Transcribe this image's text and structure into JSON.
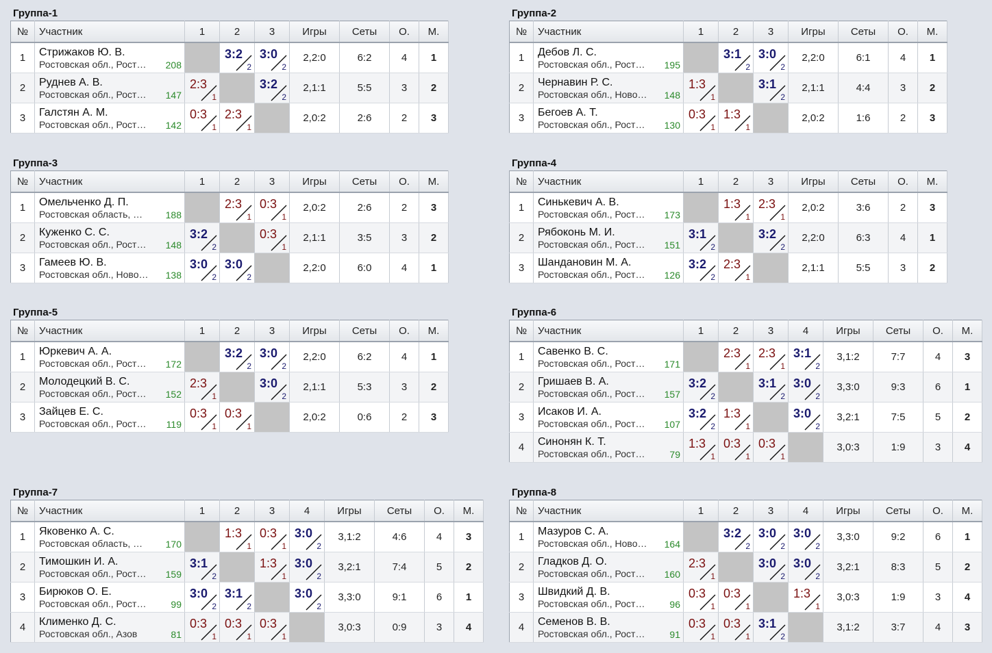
{
  "headers": {
    "num": "№",
    "participant": "Участник",
    "games": "Игры",
    "sets": "Сеты",
    "points": "О.",
    "place": "М."
  },
  "groups": [
    {
      "title": "Группа-1",
      "size": 3,
      "rows": [
        {
          "n": "1",
          "name": "Стрижаков Ю. В.",
          "region": "Ростовская обл., Рост…",
          "rating": "208",
          "res": [
            null,
            {
              "s": "3:2",
              "w": true,
              "p": "2"
            },
            {
              "s": "3:0",
              "w": true,
              "p": "2"
            }
          ],
          "games": "2,2:0",
          "sets": "6:2",
          "pts": "4",
          "place": "1"
        },
        {
          "n": "2",
          "name": "Руднев А. В.",
          "region": "Ростовская обл., Рост…",
          "rating": "147",
          "res": [
            {
              "s": "2:3",
              "w": false,
              "p": "1"
            },
            null,
            {
              "s": "3:2",
              "w": true,
              "p": "2"
            }
          ],
          "games": "2,1:1",
          "sets": "5:5",
          "pts": "3",
          "place": "2"
        },
        {
          "n": "3",
          "name": "Галстян А. М.",
          "region": "Ростовская обл., Рост…",
          "rating": "142",
          "res": [
            {
              "s": "0:3",
              "w": false,
              "p": "1"
            },
            {
              "s": "2:3",
              "w": false,
              "p": "1"
            },
            null
          ],
          "games": "2,0:2",
          "sets": "2:6",
          "pts": "2",
          "place": "3"
        }
      ]
    },
    {
      "title": "Группа-2",
      "size": 3,
      "rows": [
        {
          "n": "1",
          "name": "Дебов Л. С.",
          "region": "Ростовская обл., Рост…",
          "rating": "195",
          "res": [
            null,
            {
              "s": "3:1",
              "w": true,
              "p": "2"
            },
            {
              "s": "3:0",
              "w": true,
              "p": "2"
            }
          ],
          "games": "2,2:0",
          "sets": "6:1",
          "pts": "4",
          "place": "1"
        },
        {
          "n": "2",
          "name": "Чернавин Р. С.",
          "region": "Ростовская обл., Ново…",
          "rating": "148",
          "res": [
            {
              "s": "1:3",
              "w": false,
              "p": "1"
            },
            null,
            {
              "s": "3:1",
              "w": true,
              "p": "2"
            }
          ],
          "games": "2,1:1",
          "sets": "4:4",
          "pts": "3",
          "place": "2"
        },
        {
          "n": "3",
          "name": "Бегоев А. Т.",
          "region": "Ростовская обл., Рост…",
          "rating": "130",
          "res": [
            {
              "s": "0:3",
              "w": false,
              "p": "1"
            },
            {
              "s": "1:3",
              "w": false,
              "p": "1"
            },
            null
          ],
          "games": "2,0:2",
          "sets": "1:6",
          "pts": "2",
          "place": "3"
        }
      ]
    },
    {
      "title": "Группа-3",
      "size": 3,
      "rows": [
        {
          "n": "1",
          "name": "Омельченко Д. П.",
          "region": "Ростовская область, …",
          "rating": "188",
          "res": [
            null,
            {
              "s": "2:3",
              "w": false,
              "p": "1"
            },
            {
              "s": "0:3",
              "w": false,
              "p": "1"
            }
          ],
          "games": "2,0:2",
          "sets": "2:6",
          "pts": "2",
          "place": "3"
        },
        {
          "n": "2",
          "name": "Куженко С. С.",
          "region": "Ростовская обл., Рост…",
          "rating": "148",
          "res": [
            {
              "s": "3:2",
              "w": true,
              "p": "2"
            },
            null,
            {
              "s": "0:3",
              "w": false,
              "p": "1"
            }
          ],
          "games": "2,1:1",
          "sets": "3:5",
          "pts": "3",
          "place": "2"
        },
        {
          "n": "3",
          "name": "Гамеев Ю. В.",
          "region": "Ростовская обл., Ново…",
          "rating": "138",
          "res": [
            {
              "s": "3:0",
              "w": true,
              "p": "2"
            },
            {
              "s": "3:0",
              "w": true,
              "p": "2"
            },
            null
          ],
          "games": "2,2:0",
          "sets": "6:0",
          "pts": "4",
          "place": "1"
        }
      ]
    },
    {
      "title": "Группа-4",
      "size": 3,
      "rows": [
        {
          "n": "1",
          "name": "Синькевич А. В.",
          "region": "Ростовская обл., Рост…",
          "rating": "173",
          "res": [
            null,
            {
              "s": "1:3",
              "w": false,
              "p": "1"
            },
            {
              "s": "2:3",
              "w": false,
              "p": "1"
            }
          ],
          "games": "2,0:2",
          "sets": "3:6",
          "pts": "2",
          "place": "3"
        },
        {
          "n": "2",
          "name": "Рябоконь М. И.",
          "region": "Ростовская обл., Рост…",
          "rating": "151",
          "res": [
            {
              "s": "3:1",
              "w": true,
              "p": "2"
            },
            null,
            {
              "s": "3:2",
              "w": true,
              "p": "2"
            }
          ],
          "games": "2,2:0",
          "sets": "6:3",
          "pts": "4",
          "place": "1"
        },
        {
          "n": "3",
          "name": "Шандановин М. А.",
          "region": "Ростовская обл., Рост…",
          "rating": "126",
          "res": [
            {
              "s": "3:2",
              "w": true,
              "p": "2"
            },
            {
              "s": "2:3",
              "w": false,
              "p": "1"
            },
            null
          ],
          "games": "2,1:1",
          "sets": "5:5",
          "pts": "3",
          "place": "2"
        }
      ]
    },
    {
      "title": "Группа-5",
      "size": 3,
      "rows": [
        {
          "n": "1",
          "name": "Юркевич А. А.",
          "region": "Ростовская обл., Рост…",
          "rating": "172",
          "res": [
            null,
            {
              "s": "3:2",
              "w": true,
              "p": "2"
            },
            {
              "s": "3:0",
              "w": true,
              "p": "2"
            }
          ],
          "games": "2,2:0",
          "sets": "6:2",
          "pts": "4",
          "place": "1"
        },
        {
          "n": "2",
          "name": "Молодецкий В. С.",
          "region": "Ростовская обл., Рост…",
          "rating": "152",
          "res": [
            {
              "s": "2:3",
              "w": false,
              "p": "1"
            },
            null,
            {
              "s": "3:0",
              "w": true,
              "p": "2"
            }
          ],
          "games": "2,1:1",
          "sets": "5:3",
          "pts": "3",
          "place": "2"
        },
        {
          "n": "3",
          "name": "Зайцев Е. С.",
          "region": "Ростовская обл., Рост…",
          "rating": "119",
          "res": [
            {
              "s": "0:3",
              "w": false,
              "p": "1"
            },
            {
              "s": "0:3",
              "w": false,
              "p": "1"
            },
            null
          ],
          "games": "2,0:2",
          "sets": "0:6",
          "pts": "2",
          "place": "3"
        }
      ]
    },
    {
      "title": "Группа-6",
      "size": 4,
      "rows": [
        {
          "n": "1",
          "name": "Савенко В. С.",
          "region": "Ростовская обл., Рост…",
          "rating": "171",
          "res": [
            null,
            {
              "s": "2:3",
              "w": false,
              "p": "1"
            },
            {
              "s": "2:3",
              "w": false,
              "p": "1"
            },
            {
              "s": "3:1",
              "w": true,
              "p": "2"
            }
          ],
          "games": "3,1:2",
          "sets": "7:7",
          "pts": "4",
          "place": "3"
        },
        {
          "n": "2",
          "name": "Гришаев В. А.",
          "region": "Ростовская обл., Рост…",
          "rating": "157",
          "res": [
            {
              "s": "3:2",
              "w": true,
              "p": "2"
            },
            null,
            {
              "s": "3:1",
              "w": true,
              "p": "2"
            },
            {
              "s": "3:0",
              "w": true,
              "p": "2"
            }
          ],
          "games": "3,3:0",
          "sets": "9:3",
          "pts": "6",
          "place": "1"
        },
        {
          "n": "3",
          "name": "Исаков И. А.",
          "region": "Ростовская обл., Рост…",
          "rating": "107",
          "res": [
            {
              "s": "3:2",
              "w": true,
              "p": "2"
            },
            {
              "s": "1:3",
              "w": false,
              "p": "1"
            },
            null,
            {
              "s": "3:0",
              "w": true,
              "p": "2"
            }
          ],
          "games": "3,2:1",
          "sets": "7:5",
          "pts": "5",
          "place": "2"
        },
        {
          "n": "4",
          "name": "Синонян К. Т.",
          "region": "Ростовская обл., Рост…",
          "rating": "79",
          "res": [
            {
              "s": "1:3",
              "w": false,
              "p": "1"
            },
            {
              "s": "0:3",
              "w": false,
              "p": "1"
            },
            {
              "s": "0:3",
              "w": false,
              "p": "1"
            },
            null
          ],
          "games": "3,0:3",
          "sets": "1:9",
          "pts": "3",
          "place": "4"
        }
      ]
    },
    {
      "title": "Группа-7",
      "size": 4,
      "rows": [
        {
          "n": "1",
          "name": "Яковенко А. С.",
          "region": "Ростовская область, …",
          "rating": "170",
          "res": [
            null,
            {
              "s": "1:3",
              "w": false,
              "p": "1"
            },
            {
              "s": "0:3",
              "w": false,
              "p": "1"
            },
            {
              "s": "3:0",
              "w": true,
              "p": "2"
            }
          ],
          "games": "3,1:2",
          "sets": "4:6",
          "pts": "4",
          "place": "3"
        },
        {
          "n": "2",
          "name": "Тимошкин И. А.",
          "region": "Ростовская обл., Рост…",
          "rating": "159",
          "res": [
            {
              "s": "3:1",
              "w": true,
              "p": "2"
            },
            null,
            {
              "s": "1:3",
              "w": false,
              "p": "1"
            },
            {
              "s": "3:0",
              "w": true,
              "p": "2"
            }
          ],
          "games": "3,2:1",
          "sets": "7:4",
          "pts": "5",
          "place": "2"
        },
        {
          "n": "3",
          "name": "Бирюков О. Е.",
          "region": "Ростовская обл., Рост…",
          "rating": "99",
          "res": [
            {
              "s": "3:0",
              "w": true,
              "p": "2"
            },
            {
              "s": "3:1",
              "w": true,
              "p": "2"
            },
            null,
            {
              "s": "3:0",
              "w": true,
              "p": "2"
            }
          ],
          "games": "3,3:0",
          "sets": "9:1",
          "pts": "6",
          "place": "1"
        },
        {
          "n": "4",
          "name": "Клименко Д. С.",
          "region": "Ростовская обл., Азов",
          "rating": "81",
          "res": [
            {
              "s": "0:3",
              "w": false,
              "p": "1"
            },
            {
              "s": "0:3",
              "w": false,
              "p": "1"
            },
            {
              "s": "0:3",
              "w": false,
              "p": "1"
            },
            null
          ],
          "games": "3,0:3",
          "sets": "0:9",
          "pts": "3",
          "place": "4"
        }
      ]
    },
    {
      "title": "Группа-8",
      "size": 4,
      "rows": [
        {
          "n": "1",
          "name": "Мазуров С. А.",
          "region": "Ростовская обл., Ново…",
          "rating": "164",
          "res": [
            null,
            {
              "s": "3:2",
              "w": true,
              "p": "2"
            },
            {
              "s": "3:0",
              "w": true,
              "p": "2"
            },
            {
              "s": "3:0",
              "w": true,
              "p": "2"
            }
          ],
          "games": "3,3:0",
          "sets": "9:2",
          "pts": "6",
          "place": "1"
        },
        {
          "n": "2",
          "name": "Гладков Д. О.",
          "region": "Ростовская обл., Рост…",
          "rating": "160",
          "res": [
            {
              "s": "2:3",
              "w": false,
              "p": "1"
            },
            null,
            {
              "s": "3:0",
              "w": true,
              "p": "2"
            },
            {
              "s": "3:0",
              "w": true,
              "p": "2"
            }
          ],
          "games": "3,2:1",
          "sets": "8:3",
          "pts": "5",
          "place": "2"
        },
        {
          "n": "3",
          "name": "Швидкий Д. В.",
          "region": "Ростовская обл., Рост…",
          "rating": "96",
          "res": [
            {
              "s": "0:3",
              "w": false,
              "p": "1"
            },
            {
              "s": "0:3",
              "w": false,
              "p": "1"
            },
            null,
            {
              "s": "1:3",
              "w": false,
              "p": "1"
            }
          ],
          "games": "3,0:3",
          "sets": "1:9",
          "pts": "3",
          "place": "4"
        },
        {
          "n": "4",
          "name": "Семенов В. В.",
          "region": "Ростовская обл., Рост…",
          "rating": "91",
          "res": [
            {
              "s": "0:3",
              "w": false,
              "p": "1"
            },
            {
              "s": "0:3",
              "w": false,
              "p": "1"
            },
            {
              "s": "3:1",
              "w": true,
              "p": "2"
            },
            null
          ],
          "games": "3,1:2",
          "sets": "3:7",
          "pts": "4",
          "place": "3"
        }
      ]
    }
  ]
}
